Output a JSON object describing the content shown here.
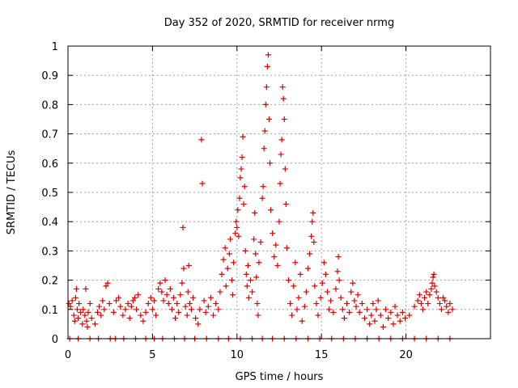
{
  "chart_data": {
    "type": "scatter",
    "title": "Day 352 of 2020, SRMTID for receiver nrmg",
    "xlabel": "GPS time / hours",
    "ylabel": "SRMTID / TECUs",
    "xlim": [
      0,
      25
    ],
    "ylim": [
      0,
      1
    ],
    "xticks": [
      0,
      5,
      10,
      15,
      20
    ],
    "yticks": [
      0,
      0.1,
      0.2,
      0.3,
      0.4,
      0.5,
      0.6,
      0.7,
      0.8,
      0.9,
      1
    ],
    "ytick_labels": [
      "0",
      "0.1",
      "0.2",
      "0.3",
      "0.4",
      "0.5",
      "0.6",
      "0.7",
      "0.8",
      "0.9",
      "1"
    ],
    "grid": true,
    "marker": "+",
    "series": [
      {
        "name": "SRMTID",
        "color": "#dd0000",
        "points": [
          [
            0.05,
            0.12
          ],
          [
            0.15,
            0.11
          ],
          [
            0.25,
            0.13
          ],
          [
            0.35,
            0.08
          ],
          [
            0.4,
            0.06
          ],
          [
            0.45,
            0.14
          ],
          [
            0.5,
            0.17
          ],
          [
            0.55,
            0.1
          ],
          [
            0.6,
            0.07
          ],
          [
            0.65,
            0.12
          ],
          [
            0.75,
            0.09
          ],
          [
            0.85,
            0.05
          ],
          [
            0.9,
            0.1
          ],
          [
            1.0,
            0.08
          ],
          [
            1.05,
            0.17
          ],
          [
            1.1,
            0.06
          ],
          [
            1.15,
            0.04
          ],
          [
            1.2,
            0.09
          ],
          [
            1.3,
            0.12
          ],
          [
            1.4,
            0.07
          ],
          [
            1.6,
            0.05
          ],
          [
            1.75,
            0.09
          ],
          [
            1.85,
            0.11
          ],
          [
            1.95,
            0.08
          ],
          [
            2.05,
            0.13
          ],
          [
            2.15,
            0.1
          ],
          [
            2.25,
            0.18
          ],
          [
            2.35,
            0.19
          ],
          [
            2.45,
            0.12
          ],
          [
            2.7,
            0.09
          ],
          [
            2.85,
            0.13
          ],
          [
            3.0,
            0.14
          ],
          [
            3.1,
            0.11
          ],
          [
            3.25,
            0.08
          ],
          [
            3.4,
            0.1
          ],
          [
            3.55,
            0.12
          ],
          [
            3.65,
            0.07
          ],
          [
            3.75,
            0.11
          ],
          [
            3.85,
            0.13
          ],
          [
            3.95,
            0.14
          ],
          [
            4.05,
            0.1
          ],
          [
            4.15,
            0.15
          ],
          [
            4.3,
            0.08
          ],
          [
            4.45,
            0.06
          ],
          [
            4.6,
            0.09
          ],
          [
            4.75,
            0.12
          ],
          [
            4.9,
            0.14
          ],
          [
            5.0,
            0.1
          ],
          [
            5.1,
            0.13
          ],
          [
            5.2,
            0.08
          ],
          [
            5.35,
            0.17
          ],
          [
            5.45,
            0.19
          ],
          [
            5.55,
            0.16
          ],
          [
            5.65,
            0.13
          ],
          [
            5.75,
            0.2
          ],
          [
            5.85,
            0.15
          ],
          [
            5.95,
            0.12
          ],
          [
            6.05,
            0.17
          ],
          [
            6.15,
            0.1
          ],
          [
            6.25,
            0.14
          ],
          [
            6.35,
            0.07
          ],
          [
            6.45,
            0.12
          ],
          [
            6.55,
            0.09
          ],
          [
            6.65,
            0.15
          ],
          [
            6.75,
            0.19
          ],
          [
            6.8,
            0.38
          ],
          [
            6.85,
            0.24
          ],
          [
            6.95,
            0.11
          ],
          [
            7.05,
            0.08
          ],
          [
            7.1,
            0.16
          ],
          [
            7.15,
            0.25
          ],
          [
            7.2,
            0.12
          ],
          [
            7.3,
            0.1
          ],
          [
            7.4,
            0.14
          ],
          [
            7.55,
            0.07
          ],
          [
            7.7,
            0.05
          ],
          [
            7.8,
            0.1
          ],
          [
            7.9,
            0.68
          ],
          [
            7.95,
            0.53
          ],
          [
            8.05,
            0.13
          ],
          [
            8.15,
            0.09
          ],
          [
            8.3,
            0.11
          ],
          [
            8.45,
            0.14
          ],
          [
            8.6,
            0.08
          ],
          [
            8.75,
            0.12
          ],
          [
            8.9,
            0.1
          ],
          [
            9.0,
            0.16
          ],
          [
            9.1,
            0.22
          ],
          [
            9.2,
            0.27
          ],
          [
            9.3,
            0.31
          ],
          [
            9.35,
            0.18
          ],
          [
            9.45,
            0.24
          ],
          [
            9.55,
            0.29
          ],
          [
            9.6,
            0.34
          ],
          [
            9.7,
            0.2
          ],
          [
            9.75,
            0.15
          ],
          [
            9.8,
            0.26
          ],
          [
            9.9,
            0.36
          ],
          [
            9.95,
            0.4
          ],
          [
            10.0,
            0.38
          ],
          [
            10.05,
            0.44
          ],
          [
            10.1,
            0.35
          ],
          [
            10.15,
            0.48
          ],
          [
            10.2,
            0.55
          ],
          [
            10.25,
            0.58
          ],
          [
            10.3,
            0.62
          ],
          [
            10.35,
            0.69
          ],
          [
            10.4,
            0.46
          ],
          [
            10.45,
            0.52
          ],
          [
            10.5,
            0.3
          ],
          [
            10.55,
            0.22
          ],
          [
            10.6,
            0.18
          ],
          [
            10.65,
            0.25
          ],
          [
            10.7,
            0.14
          ],
          [
            10.8,
            0.2
          ],
          [
            10.9,
            0.16
          ],
          [
            11.0,
            0.34
          ],
          [
            11.05,
            0.43
          ],
          [
            11.1,
            0.29
          ],
          [
            11.15,
            0.21
          ],
          [
            11.2,
            0.12
          ],
          [
            11.25,
            0.08
          ],
          [
            11.3,
            0.26
          ],
          [
            11.4,
            0.33
          ],
          [
            11.5,
            0.48
          ],
          [
            11.55,
            0.52
          ],
          [
            11.6,
            0.65
          ],
          [
            11.65,
            0.71
          ],
          [
            11.7,
            0.8
          ],
          [
            11.75,
            0.86
          ],
          [
            11.8,
            0.93
          ],
          [
            11.85,
            0.97
          ],
          [
            11.9,
            0.75
          ],
          [
            11.95,
            0.6
          ],
          [
            12.0,
            0.44
          ],
          [
            12.1,
            0.36
          ],
          [
            12.2,
            0.28
          ],
          [
            12.3,
            0.32
          ],
          [
            12.4,
            0.25
          ],
          [
            12.5,
            0.4
          ],
          [
            12.55,
            0.53
          ],
          [
            12.6,
            0.63
          ],
          [
            12.65,
            0.68
          ],
          [
            12.7,
            0.86
          ],
          [
            12.75,
            0.82
          ],
          [
            12.8,
            0.75
          ],
          [
            12.85,
            0.58
          ],
          [
            12.9,
            0.46
          ],
          [
            12.95,
            0.31
          ],
          [
            13.05,
            0.2
          ],
          [
            13.15,
            0.12
          ],
          [
            13.25,
            0.08
          ],
          [
            13.35,
            0.18
          ],
          [
            13.45,
            0.26
          ],
          [
            13.55,
            0.1
          ],
          [
            13.65,
            0.14
          ],
          [
            13.75,
            0.22
          ],
          [
            13.85,
            0.06
          ],
          [
            14.0,
            0.11
          ],
          [
            14.1,
            0.16
          ],
          [
            14.2,
            0.24
          ],
          [
            14.3,
            0.29
          ],
          [
            14.4,
            0.35
          ],
          [
            14.45,
            0.4
          ],
          [
            14.5,
            0.43
          ],
          [
            14.55,
            0.33
          ],
          [
            14.6,
            0.18
          ],
          [
            14.7,
            0.12
          ],
          [
            14.8,
            0.08
          ],
          [
            14.95,
            0.14
          ],
          [
            15.05,
            0.19
          ],
          [
            15.15,
            0.26
          ],
          [
            15.25,
            0.22
          ],
          [
            15.35,
            0.16
          ],
          [
            15.45,
            0.1
          ],
          [
            15.55,
            0.13
          ],
          [
            15.7,
            0.09
          ],
          [
            15.85,
            0.17
          ],
          [
            15.95,
            0.23
          ],
          [
            16.0,
            0.28
          ],
          [
            16.05,
            0.2
          ],
          [
            16.15,
            0.14
          ],
          [
            16.25,
            0.1
          ],
          [
            16.35,
            0.07
          ],
          [
            16.5,
            0.12
          ],
          [
            16.65,
            0.09
          ],
          [
            16.75,
            0.16
          ],
          [
            16.85,
            0.19
          ],
          [
            16.95,
            0.13
          ],
          [
            17.05,
            0.11
          ],
          [
            17.15,
            0.15
          ],
          [
            17.25,
            0.09
          ],
          [
            17.4,
            0.12
          ],
          [
            17.55,
            0.07
          ],
          [
            17.7,
            0.1
          ],
          [
            17.85,
            0.05
          ],
          [
            17.95,
            0.08
          ],
          [
            18.05,
            0.12
          ],
          [
            18.15,
            0.06
          ],
          [
            18.25,
            0.1
          ],
          [
            18.35,
            0.13
          ],
          [
            18.5,
            0.08
          ],
          [
            18.65,
            0.04
          ],
          [
            18.8,
            0.1
          ],
          [
            18.95,
            0.07
          ],
          [
            19.1,
            0.09
          ],
          [
            19.25,
            0.05
          ],
          [
            19.35,
            0.11
          ],
          [
            19.5,
            0.08
          ],
          [
            19.65,
            0.06
          ],
          [
            19.8,
            0.09
          ],
          [
            19.95,
            0.07
          ],
          [
            20.2,
            0.08
          ],
          [
            20.5,
            0.11
          ],
          [
            20.7,
            0.13
          ],
          [
            20.8,
            0.15
          ],
          [
            20.9,
            0.12
          ],
          [
            21.0,
            0.1
          ],
          [
            21.1,
            0.14
          ],
          [
            21.2,
            0.16
          ],
          [
            21.3,
            0.12
          ],
          [
            21.4,
            0.15
          ],
          [
            21.5,
            0.17
          ],
          [
            21.55,
            0.19
          ],
          [
            21.6,
            0.21
          ],
          [
            21.65,
            0.22
          ],
          [
            21.7,
            0.18
          ],
          [
            21.8,
            0.16
          ],
          [
            21.9,
            0.14
          ],
          [
            22.0,
            0.12
          ],
          [
            22.1,
            0.1
          ],
          [
            22.2,
            0.14
          ],
          [
            22.3,
            0.13
          ],
          [
            22.4,
            0.11
          ],
          [
            22.5,
            0.09
          ],
          [
            22.6,
            0.12
          ],
          [
            22.75,
            0.1
          ],
          [
            0.1,
            0
          ],
          [
            0.6,
            0
          ],
          [
            1.3,
            0
          ],
          [
            1.8,
            0
          ],
          [
            2.5,
            0
          ],
          [
            2.8,
            0
          ],
          [
            3.3,
            0
          ],
          [
            4.0,
            0
          ],
          [
            4.6,
            0
          ],
          [
            5.1,
            0
          ],
          [
            5.6,
            0
          ],
          [
            6.3,
            0
          ],
          [
            6.9,
            0
          ],
          [
            7.5,
            0
          ],
          [
            8.2,
            0
          ],
          [
            8.9,
            0
          ],
          [
            9.5,
            0
          ],
          [
            10.2,
            0
          ],
          [
            10.9,
            0
          ],
          [
            11.5,
            0
          ],
          [
            12.1,
            0
          ],
          [
            12.8,
            0
          ],
          [
            13.5,
            0
          ],
          [
            14.2,
            0
          ],
          [
            14.9,
            0
          ],
          [
            15.6,
            0
          ],
          [
            16.3,
            0
          ],
          [
            17.0,
            0
          ],
          [
            17.7,
            0
          ],
          [
            18.4,
            0
          ],
          [
            19.1,
            0
          ],
          [
            19.8,
            0
          ],
          [
            20.5,
            0
          ],
          [
            21.2,
            0
          ],
          [
            21.9,
            0
          ],
          [
            22.6,
            0
          ]
        ]
      }
    ]
  }
}
